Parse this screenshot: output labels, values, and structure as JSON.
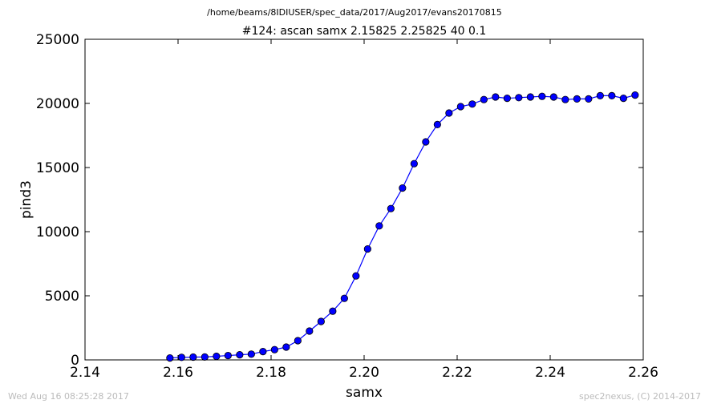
{
  "figure": {
    "path": "/home/beams/8IDIUSER/spec_data/2017/Aug2017/evans20170815",
    "timestamp": "Wed Aug 16 08:25:28 2017",
    "credit": "spec2nexus, (C) 2014-2017"
  },
  "chart_data": {
    "type": "line",
    "title": "#124: ascan  samx 2.15825 2.25825  40 0.1",
    "xlabel": "samx",
    "ylabel": "pind3",
    "xlim": [
      2.14,
      2.26
    ],
    "ylim": [
      0,
      25000
    ],
    "xticks": [
      "2.14",
      "2.16",
      "2.18",
      "2.20",
      "2.22",
      "2.24",
      "2.26"
    ],
    "yticks": [
      "0",
      "5000",
      "10000",
      "15000",
      "20000",
      "25000"
    ],
    "grid": false,
    "color": "#0000ff",
    "x": [
      2.15825,
      2.16075,
      2.16325,
      2.16575,
      2.16825,
      2.17075,
      2.17325,
      2.17575,
      2.17825,
      2.18075,
      2.18325,
      2.18575,
      2.18825,
      2.19075,
      2.19325,
      2.19575,
      2.19825,
      2.20075,
      2.20325,
      2.20575,
      2.20825,
      2.21075,
      2.21325,
      2.21575,
      2.21825,
      2.22075,
      2.22325,
      2.22575,
      2.22825,
      2.23075,
      2.23325,
      2.23575,
      2.23825,
      2.24075,
      2.24325,
      2.24575,
      2.24825,
      2.25075,
      2.25325,
      2.25575,
      2.25825
    ],
    "y": [
      150,
      200,
      220,
      230,
      280,
      340,
      400,
      450,
      650,
      800,
      1000,
      1500,
      2250,
      3000,
      3800,
      4800,
      6550,
      8650,
      10450,
      11800,
      13400,
      15300,
      17000,
      18350,
      19250,
      19750,
      19950,
      20300,
      20500,
      20400,
      20450,
      20500,
      20550,
      20500,
      20300,
      20350,
      20350,
      20600,
      20600,
      20400,
      20650
    ]
  }
}
